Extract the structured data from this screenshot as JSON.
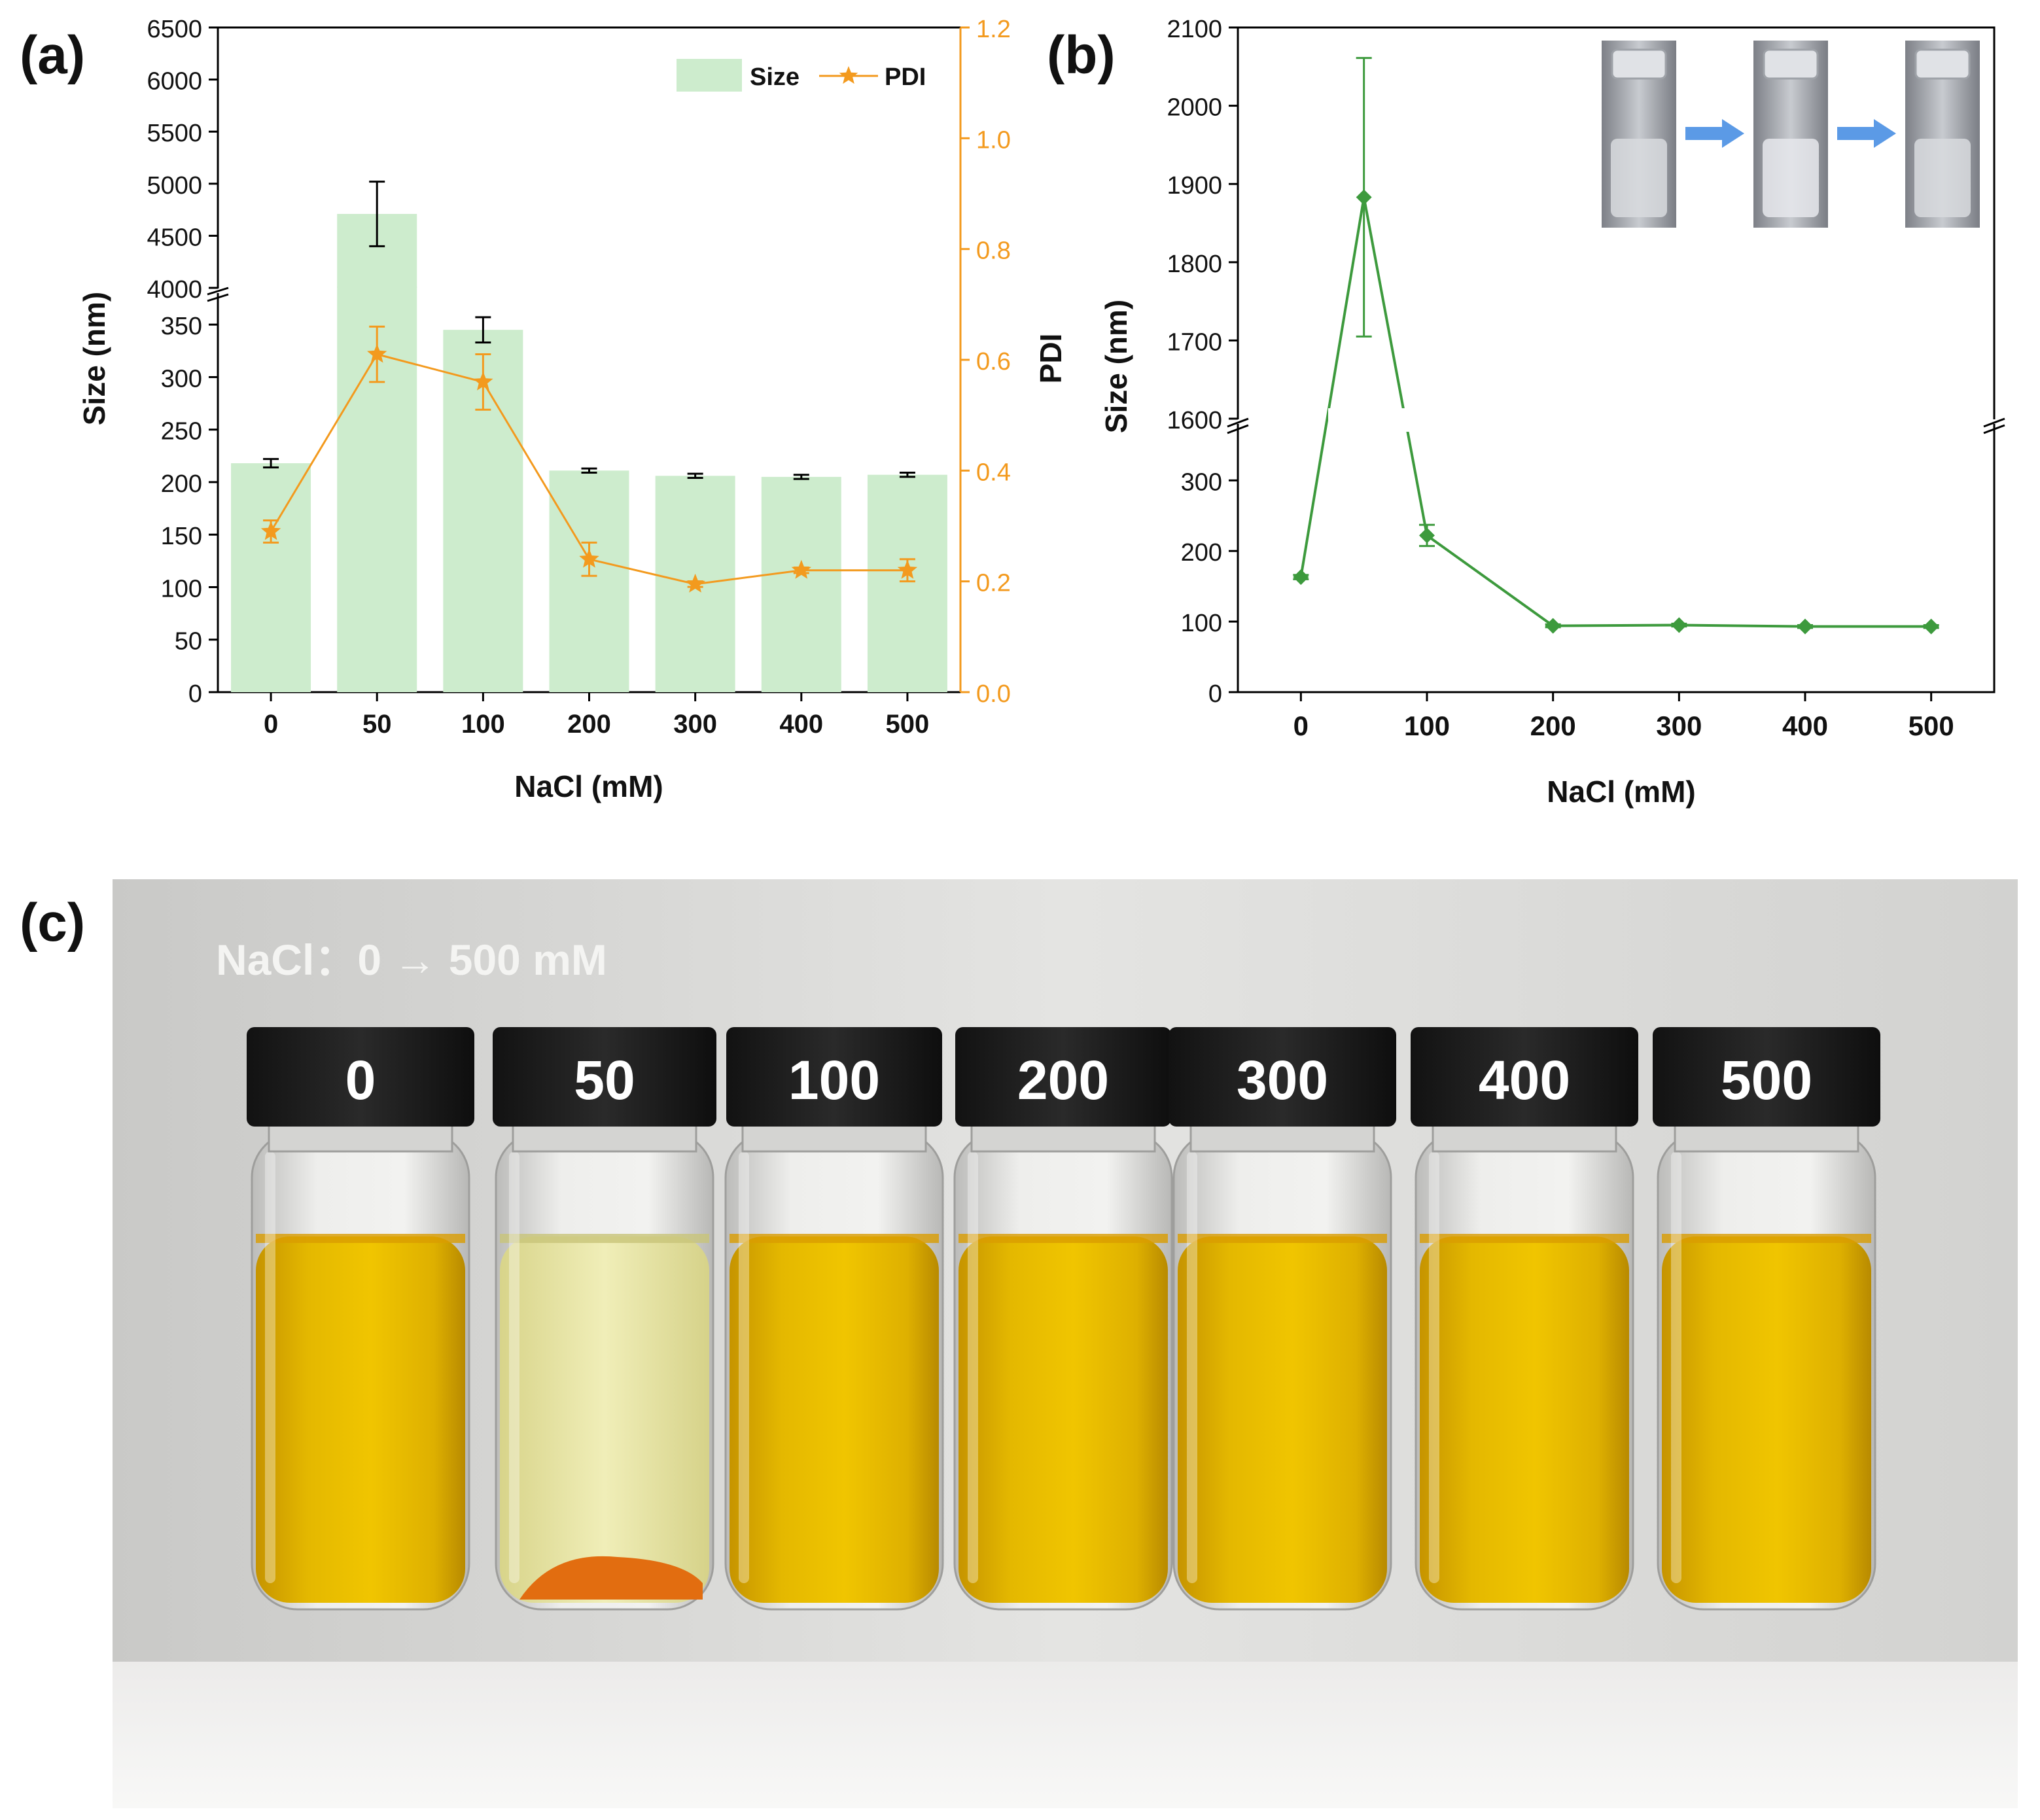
{
  "panels": {
    "a": {
      "letter": "(a)"
    },
    "b": {
      "letter": "(b)"
    },
    "c": {
      "letter": "(c)"
    }
  },
  "chart_data": [
    {
      "id": "a",
      "type": "bar",
      "xlabel": "NaCl (mM)",
      "ylabel": "Size (nm)",
      "ylabel_right": "PDI",
      "categories": [
        "0",
        "50",
        "100",
        "200",
        "300",
        "400",
        "500"
      ],
      "y_lower_range": [
        0,
        380
      ],
      "y_upper_range": [
        4000,
        6500
      ],
      "y_lower_ticks": [
        "0",
        "50",
        "100",
        "150",
        "200",
        "250",
        "300",
        "350"
      ],
      "y_upper_ticks": [
        "4000",
        "4500",
        "5000",
        "5500",
        "6000",
        "6500"
      ],
      "y_right_range": [
        0,
        1.2
      ],
      "y_right_ticks": [
        "0.0",
        "0.2",
        "0.4",
        "0.6",
        "0.8",
        "1.0",
        "1.2"
      ],
      "series": [
        {
          "name": "Size",
          "kind": "bar",
          "color": "#cdeccd",
          "values": [
            218,
            4710,
            345,
            211,
            206,
            205,
            207
          ],
          "errors": [
            4,
            310,
            12,
            2,
            2,
            2,
            2
          ]
        },
        {
          "name": "PDI",
          "kind": "line",
          "marker": "star",
          "color": "#f39a1e",
          "values": [
            0.29,
            0.61,
            0.56,
            0.24,
            0.195,
            0.22,
            0.22
          ],
          "errors": [
            0.02,
            0.05,
            0.05,
            0.03,
            0.005,
            0.005,
            0.02
          ]
        }
      ],
      "legend": {
        "position": "top-right",
        "size_label": "Size",
        "pdi_label": "PDI"
      }
    },
    {
      "id": "b",
      "type": "line",
      "xlabel": "NaCl (mM)",
      "ylabel": "Size (nm)",
      "x_ticks": [
        "0",
        "100",
        "200",
        "300",
        "400",
        "500"
      ],
      "x_range": [
        -50,
        550
      ],
      "y_lower_range": [
        0,
        380
      ],
      "y_upper_range": [
        1600,
        2100
      ],
      "y_lower_ticks": [
        "0",
        "100",
        "200",
        "300"
      ],
      "y_upper_ticks": [
        "1600",
        "1700",
        "1800",
        "1900",
        "2000",
        "2100"
      ],
      "series": [
        {
          "name": "Size",
          "color": "#3d9a3d",
          "x": [
            0,
            50,
            100,
            200,
            300,
            400,
            500
          ],
          "values": [
            163,
            1883,
            222,
            94,
            95,
            93,
            93
          ],
          "errors": [
            3,
            178,
            15,
            2,
            2,
            2,
            2
          ]
        }
      ],
      "inset": {
        "description": "Photo of three vials showing cloudy to clear transition"
      }
    }
  ],
  "photo": {
    "caption": "NaCl：0 → 500 mM",
    "vial_labels": [
      "0",
      "50",
      "100",
      "200",
      "300",
      "400",
      "500"
    ]
  }
}
